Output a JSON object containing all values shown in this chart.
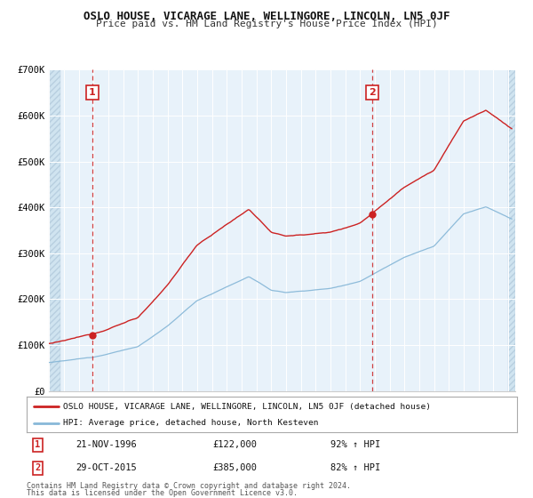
{
  "title": "OSLO HOUSE, VICARAGE LANE, WELLINGORE, LINCOLN, LN5 0JF",
  "subtitle": "Price paid vs. HM Land Registry's House Price Index (HPI)",
  "outer_bg": "#ffffff",
  "plot_bg_color": "#e8f2fa",
  "red_color": "#cc2222",
  "blue_color": "#88b8d8",
  "ylim": [
    0,
    700000
  ],
  "xlim_start": 1994.0,
  "xlim_end": 2025.5,
  "yticks": [
    0,
    100000,
    200000,
    300000,
    400000,
    500000,
    600000,
    700000
  ],
  "ytick_labels": [
    "£0",
    "£100K",
    "£200K",
    "£300K",
    "£400K",
    "£500K",
    "£600K",
    "£700K"
  ],
  "sale1_date": 1996.9,
  "sale1_price": 122000,
  "sale1_label": "1",
  "sale1_date_str": "21-NOV-1996",
  "sale1_price_str": "£122,000",
  "sale1_pct": "92% ↑ HPI",
  "sale2_date": 2015.83,
  "sale2_price": 385000,
  "sale2_label": "2",
  "sale2_date_str": "29-OCT-2015",
  "sale2_price_str": "£385,000",
  "sale2_pct": "82% ↑ HPI",
  "legend_label_red": "OSLO HOUSE, VICARAGE LANE, WELLINGORE, LINCOLN, LN5 0JF (detached house)",
  "legend_label_blue": "HPI: Average price, detached house, North Kesteven",
  "footer1": "Contains HM Land Registry data © Crown copyright and database right 2024.",
  "footer2": "This data is licensed under the Open Government Licence v3.0."
}
